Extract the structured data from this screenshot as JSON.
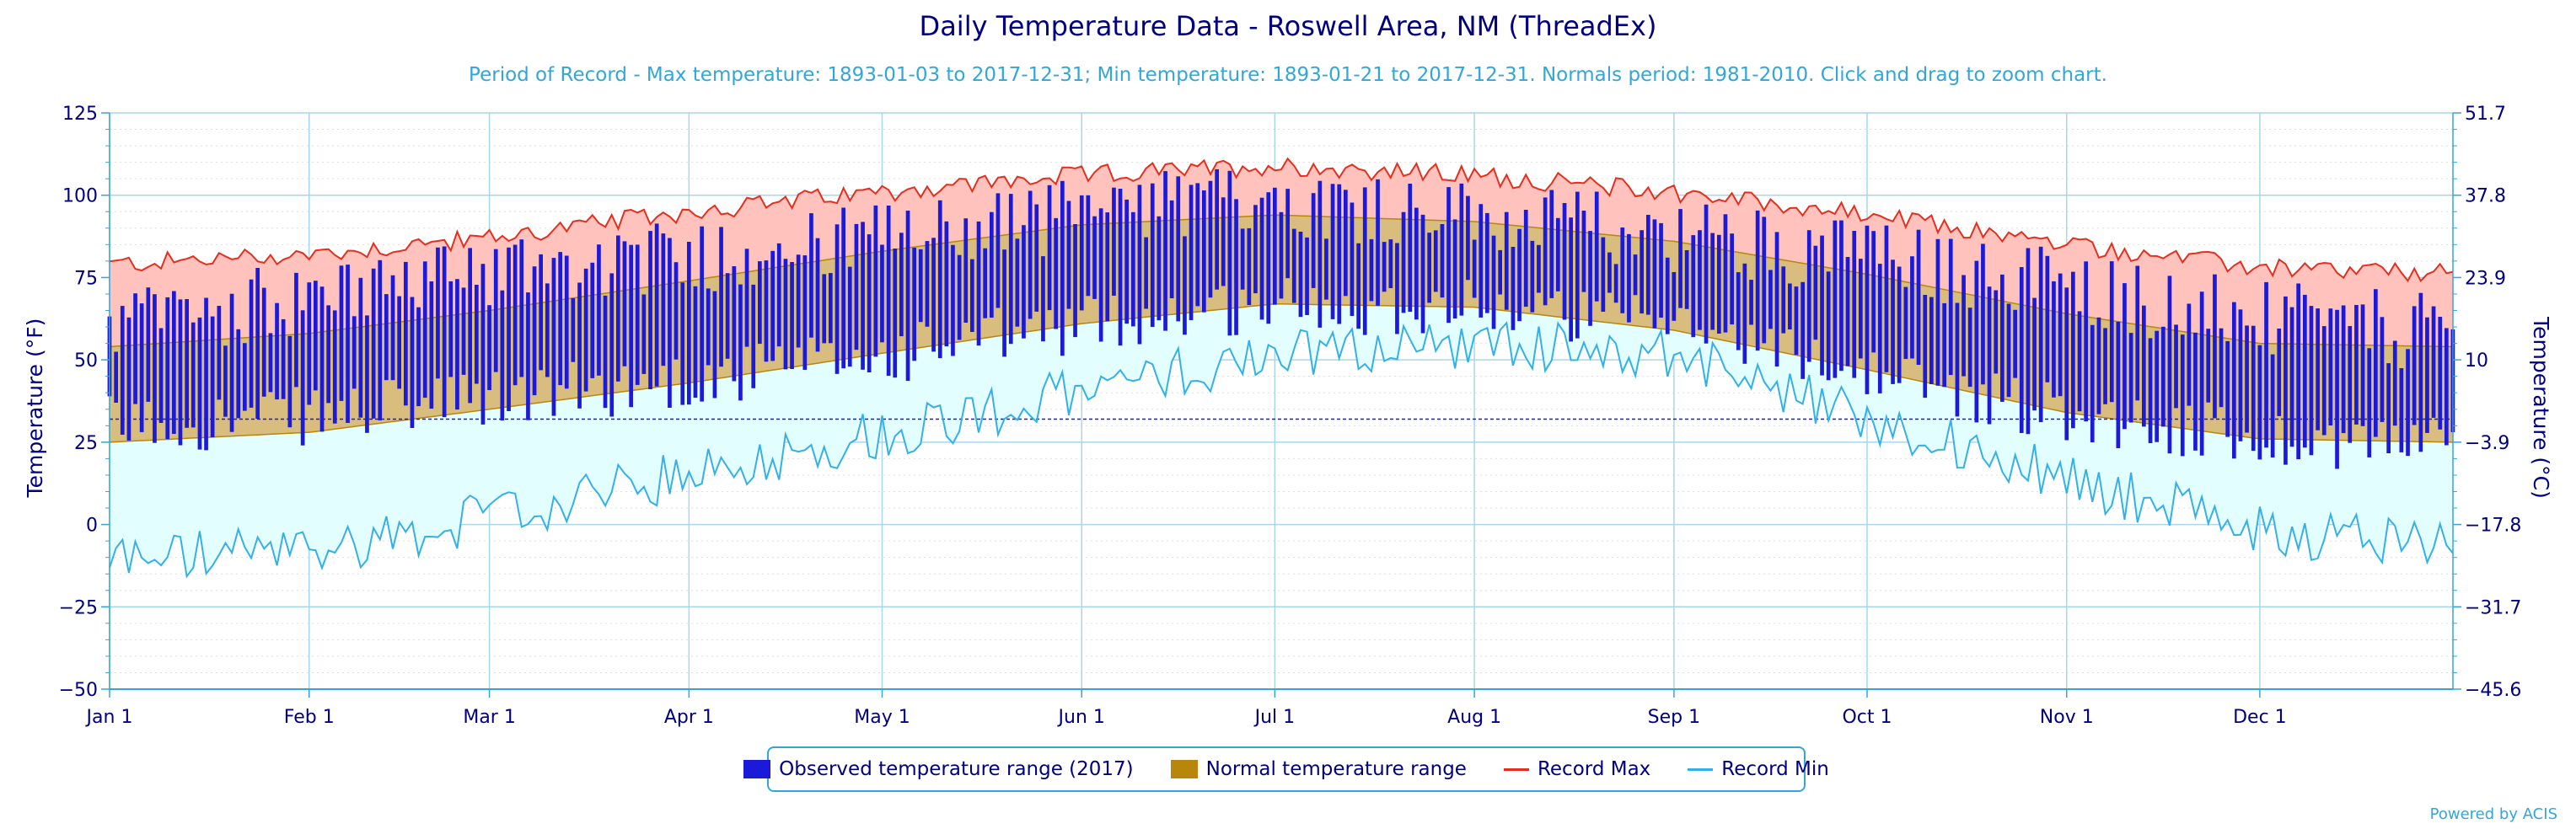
{
  "chart_data": {
    "type": "bar",
    "title": "Daily Temperature Data - Roswell Area, NM (ThreadEx)",
    "subtitle": "Period of Record - Max temperature: 1893-01-03 to 2017-12-31; Min temperature: 1893-01-21 to 2017-12-31. Normals period: 1981-2010. Click and drag to zoom chart.",
    "ylabel": "Temperature (°F)",
    "ylabel_right": "Temperature (°C)",
    "ylim": [
      -50,
      125
    ],
    "yticks": [
      125,
      100,
      75,
      50,
      25,
      0,
      -25,
      -50
    ],
    "yticks_right": [
      "51.7",
      "37.8",
      "23.9",
      "10",
      "-3.9",
      "-17.8",
      "-31.7",
      "-45.6"
    ],
    "x_tick_labels": [
      "Jan 1",
      "Feb 1",
      "Mar 1",
      "Apr 1",
      "May 1",
      "Jun 1",
      "Jul 1",
      "Aug 1",
      "Sep 1",
      "Oct 1",
      "Nov 1",
      "Dec 1"
    ],
    "x_tick_days": [
      1,
      32,
      60,
      91,
      121,
      152,
      182,
      213,
      244,
      274,
      305,
      335
    ],
    "freezing_line": 32,
    "grid": true,
    "legend_position": "bottom-center",
    "colors": {
      "observed": "#1a1ad8",
      "normal_fill": "#d9bd7f",
      "normal_edge": "#b8860b",
      "record_max": "#e62e1e",
      "record_max_fill": "#ffc2bd",
      "record_min": "#33b0e6",
      "record_min_fill": "#e2fefe",
      "axis": "#33a6d8",
      "text": "#000080"
    },
    "series": [
      {
        "name": "Record Max",
        "monthly_approx": {
          "month_start": [
            1,
            32,
            60,
            91,
            121,
            152,
            182,
            213,
            244,
            274,
            305,
            335,
            365
          ],
          "values": [
            79,
            82,
            87,
            95,
            101,
            106,
            109,
            106,
            101,
            94,
            85,
            78,
            76
          ]
        }
      },
      {
        "name": "Record Min",
        "monthly_approx": {
          "month_start": [
            1,
            32,
            60,
            91,
            121,
            152,
            182,
            213,
            244,
            274,
            305,
            335,
            365
          ],
          "values": [
            -10,
            -8,
            2,
            15,
            28,
            40,
            52,
            55,
            52,
            32,
            14,
            -2,
            -5
          ]
        }
      },
      {
        "name": "Normal temperature range",
        "normal_high_approx": {
          "month_start": [
            1,
            32,
            60,
            91,
            121,
            152,
            182,
            213,
            244,
            274,
            305,
            335,
            365
          ],
          "values": [
            54,
            58,
            65,
            74,
            83,
            91,
            94,
            92,
            86,
            76,
            64,
            55,
            54
          ]
        },
        "normal_low_approx": {
          "month_start": [
            1,
            32,
            60,
            91,
            121,
            152,
            182,
            213,
            244,
            274,
            305,
            335,
            365
          ],
          "values": [
            25,
            28,
            35,
            43,
            52,
            61,
            67,
            66,
            59,
            47,
            34,
            26,
            25
          ]
        }
      },
      {
        "name": "Observed temperature range (2017)",
        "monthly_approx": {
          "month_start": [
            1,
            32,
            60,
            91,
            121,
            152,
            182,
            213,
            244,
            274,
            305,
            335,
            365
          ],
          "high": [
            60,
            70,
            78,
            82,
            86,
            95,
            100,
            93,
            88,
            82,
            73,
            62,
            58
          ],
          "low": [
            30,
            33,
            38,
            44,
            51,
            61,
            67,
            66,
            60,
            46,
            34,
            26,
            25
          ]
        }
      }
    ]
  },
  "legend": {
    "observed_label": "Observed temperature range (2017)",
    "normal_label": "Normal temperature range",
    "record_max_label": "Record Max",
    "record_min_label": "Record Min"
  },
  "credits": "Powered by ACIS"
}
